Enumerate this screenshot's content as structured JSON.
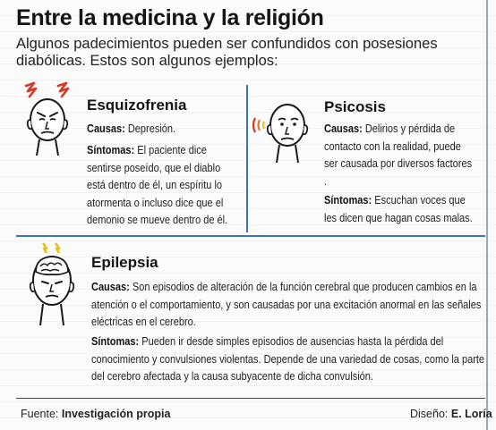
{
  "header": {
    "title": "Entre la medicina y la religión",
    "subtitle": "Algunos padecimientos pueden ser confundidos con posesiones diabólicas. Estos son algunos ejemplos:"
  },
  "colors": {
    "accent_blue": "#3b76b8",
    "accent_red": "#d23a2a",
    "accent_orange": "#e0742a",
    "accent_yellow": "#e7c020"
  },
  "sections": {
    "esquizofrenia": {
      "title": "Esquizofrenia",
      "causas_label": "Causas:",
      "causas_text": " Depresión.",
      "sintomas_label": "Síntomas:",
      "sintomas_text": " El paciente dice sentirse poseído, que el diablo está dentro de él, un espíritu lo atormenta o  incluso dice que el demonio se mueve dentro de él.",
      "icon": "head-red-zigzag-icon"
    },
    "psicosis": {
      "title": "Psicosis",
      "causas_label": "Causas:",
      "causas_text": " Delirios y pérdida de contacto con la realidad, puede ser causada por diversos factores .",
      "sintomas_label": "Síntomas:",
      "sintomas_text": " Escuchan voces que les dicen que hagan cosas malas.",
      "icon": "head-sound-waves-icon"
    },
    "epilepsia": {
      "title": "Epilepsia",
      "causas_label": "Causas:",
      "causas_text": " Son episodios de alteración de la función cerebral que producen cambios en la atención o el comportamiento, y son causadas por una excitación anormal en las señales eléctricas en el cerebro.",
      "sintomas_label": "Síntomas:",
      "sintomas_text": " Pueden ir desde simples episodios de ausencias hasta la pérdida del conocimiento y convulsiones violentas. Depende de una variedad de cosas, como la parte del cerebro afectada y la causa subyacente de dicha convulsión.",
      "icon": "head-brain-lightning-icon"
    }
  },
  "footer": {
    "source_label": "Fuente:",
    "source_value": "Investigación propia",
    "design_label": "Diseño:",
    "design_value": "E. Loría"
  }
}
